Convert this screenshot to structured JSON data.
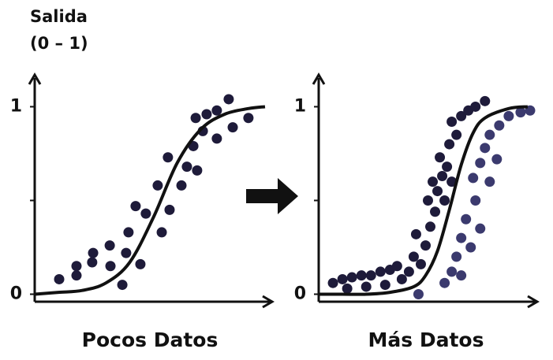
{
  "chart_data": [
    {
      "type": "scatter",
      "y_label_lines": [
        "Salida",
        "(0 – 1)"
      ],
      "x_label": "Pocos Datos",
      "xlim": [
        0,
        10
      ],
      "ylim": [
        -0.04,
        1.17
      ],
      "yticks": [
        0,
        1
      ],
      "minor_yticks": [
        0.5
      ],
      "series": [
        {
          "type": "scatter",
          "color": "#1e1b3a",
          "x": [
            1.03,
            1.76,
            1.76,
            2.42,
            2.46,
            3.19,
            3.16,
            3.69,
            3.85,
            3.95,
            4.45,
            4.25,
            4.68,
            5.18,
            5.35,
            5.68,
            5.61,
            6.18,
            6.41,
            6.68,
            6.84,
            7.08,
            7.24,
            7.67,
            7.67,
            8.17,
            8.34,
            9.0,
            6.78
          ],
          "values": [
            0.08,
            0.1,
            0.15,
            0.17,
            0.22,
            0.15,
            0.26,
            0.05,
            0.22,
            0.33,
            0.16,
            0.47,
            0.43,
            0.58,
            0.33,
            0.45,
            0.73,
            0.58,
            0.68,
            0.79,
            0.66,
            0.87,
            0.96,
            0.83,
            0.98,
            1.04,
            0.89,
            0.94,
            0.94
          ]
        },
        {
          "type": "line",
          "color": "#111111",
          "x": [
            0,
            1,
            2,
            3,
            4,
            5,
            6,
            7,
            8,
            9,
            9.7
          ],
          "values": [
            0.0,
            0.01,
            0.02,
            0.06,
            0.17,
            0.41,
            0.7,
            0.88,
            0.96,
            0.99,
            1.0
          ]
        }
      ]
    },
    {
      "type": "scatter",
      "x_label": "Más Datos",
      "xlim": [
        0,
        9.2
      ],
      "ylim": [
        -0.04,
        1.17
      ],
      "yticks": [
        0,
        1
      ],
      "minor_yticks": [
        0.5
      ],
      "series": [
        {
          "type": "scatter",
          "color": "#1e1b3a",
          "x": [
            0.6,
            1.0,
            1.4,
            1.8,
            2.2,
            2.6,
            3.0,
            3.3,
            1.2,
            2.0,
            2.8,
            3.5,
            3.8,
            4.0,
            4.3,
            4.1,
            4.5,
            4.7,
            4.9,
            4.6,
            5.0,
            5.2,
            5.1,
            5.4,
            5.5,
            5.8,
            5.6,
            6.0,
            6.3,
            6.6,
            7.0,
            5.3,
            4.8,
            5.6
          ],
          "values": [
            0.06,
            0.08,
            0.09,
            0.1,
            0.1,
            0.12,
            0.13,
            0.15,
            0.03,
            0.04,
            0.05,
            0.08,
            0.12,
            0.2,
            0.16,
            0.32,
            0.26,
            0.36,
            0.44,
            0.5,
            0.55,
            0.63,
            0.73,
            0.68,
            0.8,
            0.85,
            0.92,
            0.95,
            0.98,
            1.0,
            1.03,
            0.5,
            0.6,
            0.6
          ]
        },
        {
          "type": "scatter",
          "color": "#3b3a6e",
          "x": [
            4.2,
            5.3,
            5.6,
            5.8,
            6.0,
            6.2,
            6.0,
            6.4,
            6.6,
            6.5,
            6.8,
            7.0,
            7.2,
            7.6,
            8.0,
            8.5,
            8.9,
            6.8,
            7.2,
            7.5
          ],
          "values": [
            0.0,
            0.06,
            0.12,
            0.2,
            0.3,
            0.4,
            0.1,
            0.25,
            0.5,
            0.62,
            0.7,
            0.78,
            0.85,
            0.9,
            0.95,
            0.97,
            0.98,
            0.35,
            0.6,
            0.72
          ]
        },
        {
          "type": "line",
          "color": "#111111",
          "x": [
            0,
            1,
            2,
            3,
            4,
            4.5,
            5,
            5.5,
            6,
            6.5,
            7,
            8,
            8.8
          ],
          "values": [
            0.0,
            0.0,
            0.0,
            0.01,
            0.04,
            0.1,
            0.23,
            0.45,
            0.69,
            0.86,
            0.94,
            0.99,
            1.0
          ]
        }
      ]
    }
  ]
}
